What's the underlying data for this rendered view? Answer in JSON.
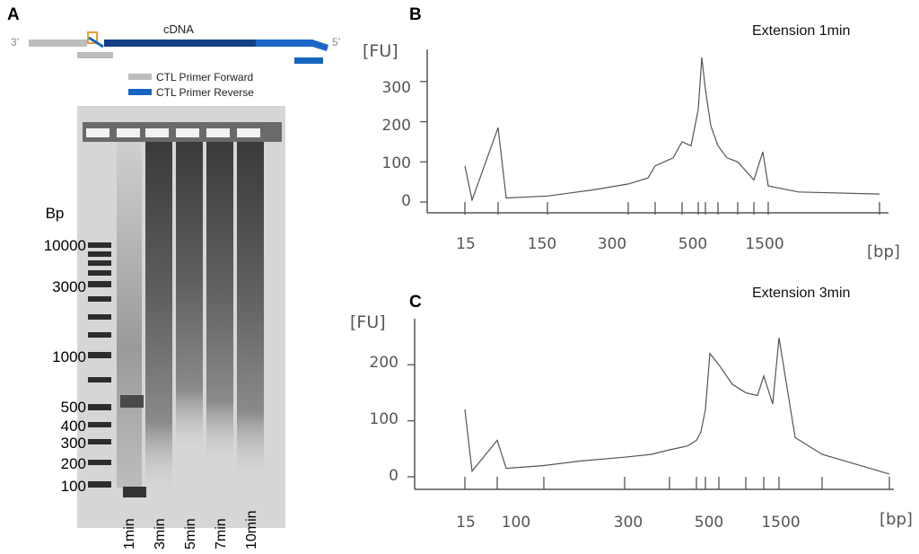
{
  "panels": {
    "a": "A",
    "b": "B",
    "c": "C"
  },
  "schematic": {
    "label_3prime": "3’",
    "label_5prime": "5’",
    "cdna_label": "cDNA",
    "legend_forward": "CTL Primer Forward",
    "legend_reverse": "CTL Primer Reverse",
    "forward_color": "#bdbdbd",
    "reverse_color": "#1565c0"
  },
  "gel": {
    "bp_title": "Bp",
    "marker_labels": [
      "10000",
      "3000",
      "1000",
      "500",
      "400",
      "300",
      "200",
      "100"
    ],
    "lanes": [
      "1min",
      "3min",
      "5min",
      "7min",
      "10min"
    ]
  },
  "chart_data": [
    {
      "type": "line",
      "panel": "B",
      "title": "Extension 1min",
      "ylabel": "[FU]",
      "xlabel": "[bp]",
      "ylim": [
        0,
        380
      ],
      "y_ticks": [
        0,
        100,
        200,
        300
      ],
      "x_tick_labels": [
        "15",
        "150",
        "300",
        "500",
        "1500"
      ],
      "x": [
        "15",
        "20",
        "30",
        "40",
        "60",
        "100",
        "150",
        "200",
        "250",
        "300",
        "350",
        "400",
        "450",
        "500",
        "550",
        "600",
        "650",
        "700",
        "800",
        "900",
        "1000",
        "1200",
        "1500",
        "2000",
        "3000"
      ],
      "series": [
        {
          "values": [
            90,
            5,
            185,
            10,
            15,
            30,
            45,
            60,
            90,
            110,
            150,
            140,
            230,
            360,
            280,
            190,
            140,
            110,
            100,
            80,
            55,
            125,
            40,
            25,
            20
          ]
        }
      ],
      "grid": false
    },
    {
      "type": "line",
      "panel": "C",
      "title": "Extension 3min",
      "ylabel": "[FU]",
      "xlabel": "[bp]",
      "ylim": [
        0,
        250
      ],
      "y_ticks": [
        0,
        100,
        200
      ],
      "x_tick_labels": [
        "15",
        "100",
        "300",
        "500",
        "1500"
      ],
      "x": [
        "15",
        "20",
        "30",
        "40",
        "60",
        "100",
        "150",
        "200",
        "250",
        "300",
        "350",
        "400",
        "450",
        "500",
        "550",
        "600",
        "700",
        "800",
        "900",
        "1000",
        "1200",
        "1500",
        "2000",
        "3000"
      ],
      "series": [
        {
          "values": [
            120,
            10,
            65,
            15,
            20,
            28,
            35,
            40,
            48,
            55,
            65,
            80,
            120,
            220,
            200,
            165,
            150,
            145,
            180,
            130,
            248,
            70,
            40,
            5
          ]
        }
      ],
      "grid": false
    }
  ]
}
